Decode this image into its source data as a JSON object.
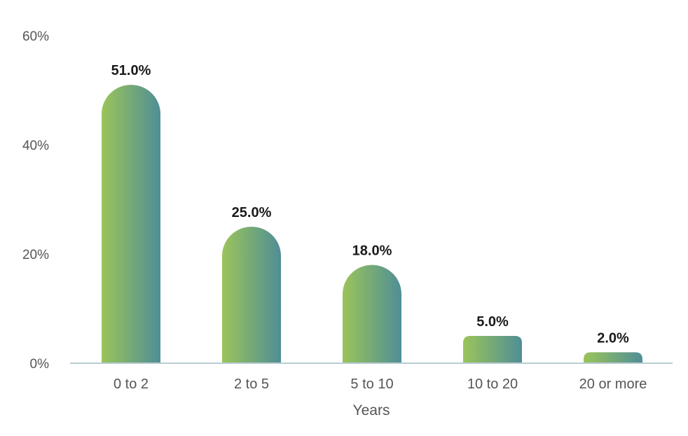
{
  "chart_data": {
    "type": "bar",
    "categories": [
      "0 to 2",
      "2 to 5",
      "5 to 10",
      "10 to 20",
      "20 or more"
    ],
    "values": [
      51.0,
      25.0,
      18.0,
      5.0,
      2.0
    ],
    "data_labels": [
      "51.0%",
      "25.0%",
      "18.0%",
      "5.0%",
      "2.0%"
    ],
    "title": "",
    "xlabel": "Years",
    "ylabel": "",
    "ylim": [
      0,
      60
    ],
    "y_ticks": [
      {
        "value": 0,
        "label": "0%"
      },
      {
        "value": 20,
        "label": "20%"
      },
      {
        "value": 40,
        "label": "40%"
      },
      {
        "value": 60,
        "label": "60%"
      }
    ],
    "grid": false,
    "legend": "none",
    "colors": {
      "bar_gradient_start": "#9bc45a",
      "bar_gradient_end": "#4f8e96",
      "axis_line": "#b9cdd3"
    }
  }
}
